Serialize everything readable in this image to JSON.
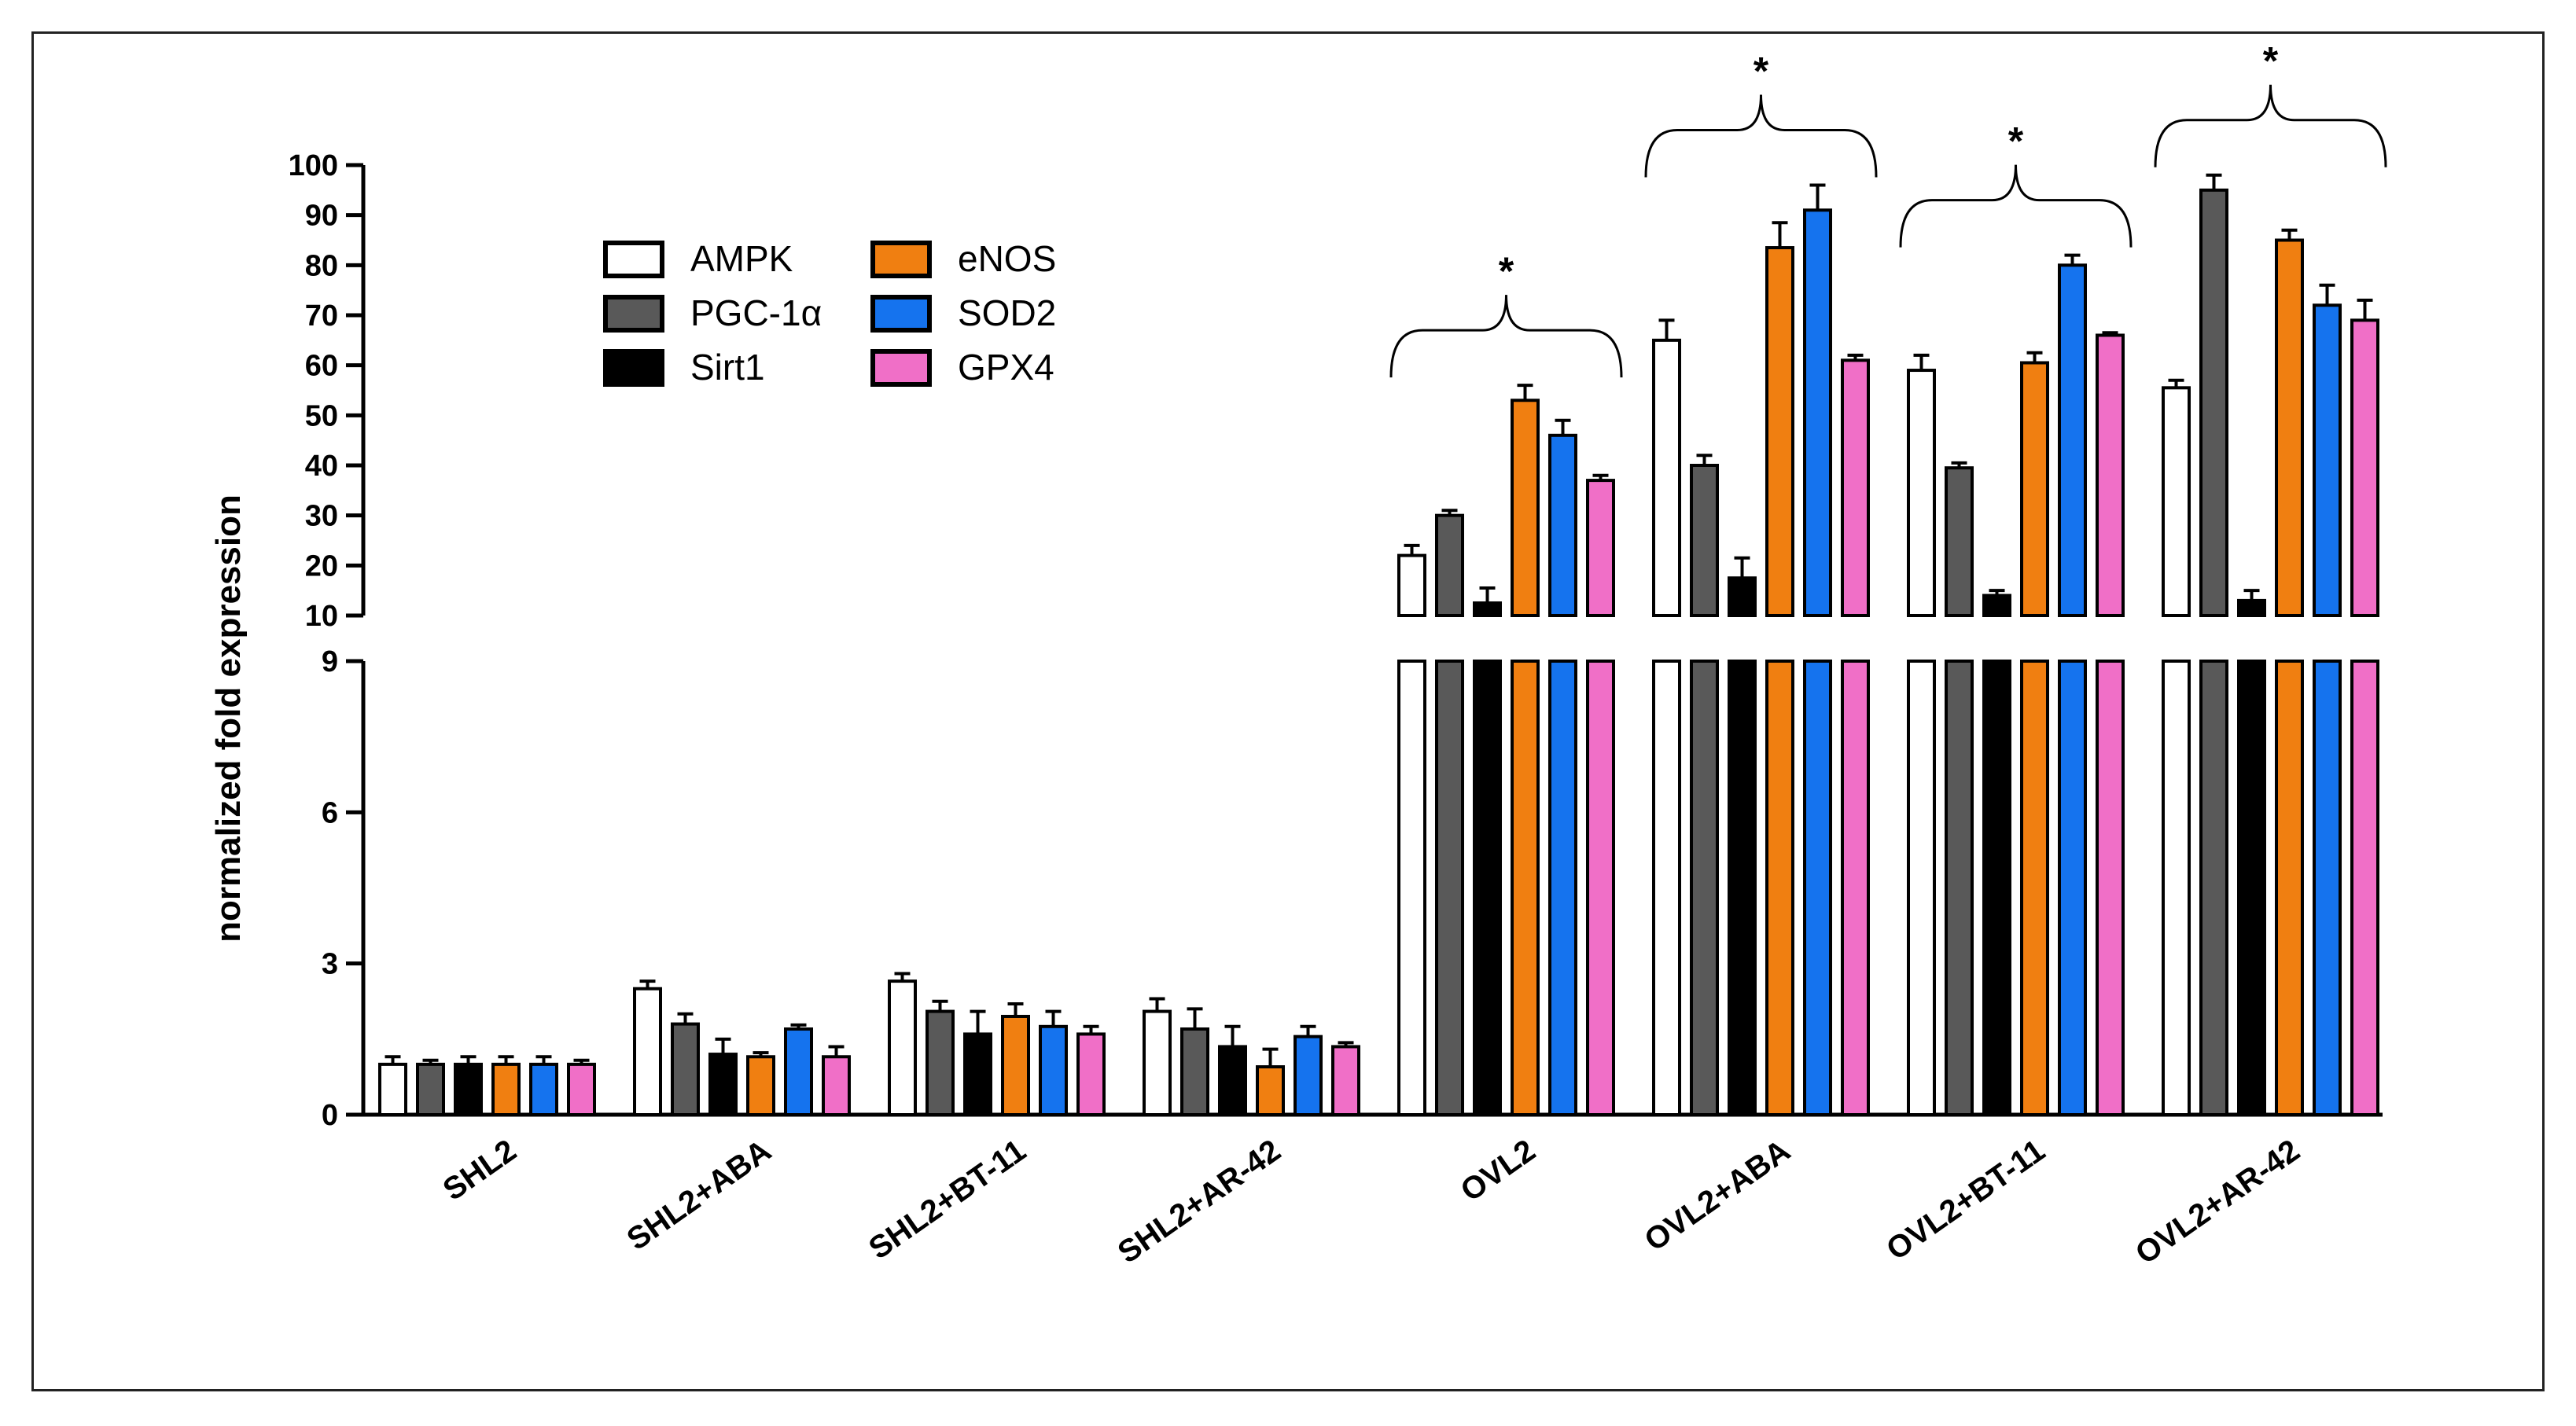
{
  "chart_data": {
    "type": "bar",
    "ylabel": "normalized fold expression",
    "axis_break": {
      "lower_range": [
        0,
        9
      ],
      "upper_range": [
        10,
        100
      ]
    },
    "lower_ticks": [
      0,
      3,
      6,
      9
    ],
    "upper_ticks": [
      10,
      20,
      30,
      40,
      50,
      60,
      70,
      80,
      90,
      100
    ],
    "categories": [
      "SHL2",
      "SHL2+ABA",
      "SHL2+BT-11",
      "SHL2+AR-42",
      "OVL2",
      "OVL2+ABA",
      "OVL2+BT-11",
      "OVL2+AR-42"
    ],
    "series": [
      {
        "name": "AMPK",
        "color": "#ffffff",
        "values": [
          1.0,
          2.5,
          2.65,
          2.05,
          22,
          65,
          59,
          55.5
        ],
        "errors": [
          0.15,
          0.15,
          0.15,
          0.25,
          2,
          4,
          3,
          1.5
        ]
      },
      {
        "name": "PGC-1α",
        "color": "#595959",
        "values": [
          1.0,
          1.8,
          2.05,
          1.7,
          30,
          40,
          39.5,
          95
        ],
        "errors": [
          0.08,
          0.2,
          0.2,
          0.4,
          1,
          2,
          1,
          3
        ]
      },
      {
        "name": "Sirt1",
        "color": "#000000",
        "values": [
          1.0,
          1.2,
          1.6,
          1.35,
          12.5,
          17.5,
          14,
          13
        ],
        "errors": [
          0.15,
          0.3,
          0.45,
          0.4,
          3,
          4,
          1,
          2
        ]
      },
      {
        "name": "eNOS",
        "color": "#f07f11",
        "values": [
          1.0,
          1.15,
          1.95,
          0.95,
          53,
          83.5,
          60.5,
          85
        ],
        "errors": [
          0.15,
          0.08,
          0.25,
          0.35,
          3,
          5,
          2,
          2
        ]
      },
      {
        "name": "SOD2",
        "color": "#1573ee",
        "values": [
          1.0,
          1.7,
          1.75,
          1.55,
          46,
          91,
          80,
          72
        ],
        "errors": [
          0.15,
          0.08,
          0.3,
          0.2,
          3,
          5,
          2,
          4
        ]
      },
      {
        "name": "GPX4",
        "color": "#f06fc7",
        "values": [
          1.0,
          1.15,
          1.6,
          1.35,
          37,
          61,
          66,
          69
        ],
        "errors": [
          0.08,
          0.2,
          0.15,
          0.08,
          1,
          1,
          0.5,
          4
        ]
      }
    ],
    "legend": {
      "placement": "upper-left",
      "columns": 2
    },
    "annotations": [
      {
        "group": "OVL2",
        "text": "*"
      },
      {
        "group": "OVL2+ABA",
        "text": "*"
      },
      {
        "group": "OVL2+BT-11",
        "text": "*"
      },
      {
        "group": "OVL2+AR-42",
        "text": "*"
      }
    ]
  }
}
